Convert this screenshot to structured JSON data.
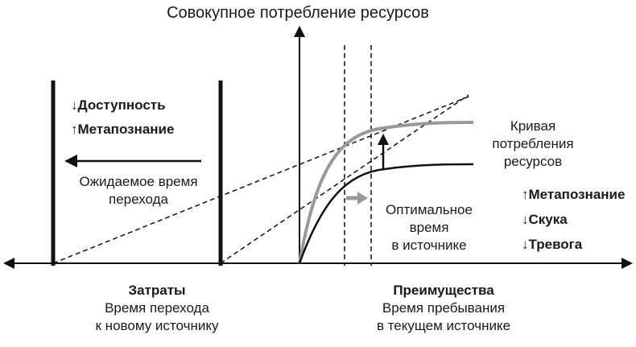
{
  "title": "Совокупное потребление ресурсов",
  "left_box": {
    "item1_arrow": "↓",
    "item1_label": "Доступность",
    "item2_arrow": "↑",
    "item2_label": "Метапознание",
    "caption_line1": "Ожидаемое время",
    "caption_line2": "перехода"
  },
  "curve_label": {
    "line1": "Кривая",
    "line2": "потребления",
    "line3": "ресурсов"
  },
  "optimal_label": {
    "line1": "Оптимальное",
    "line2": "время",
    "line3": "в источнике"
  },
  "right_list": {
    "item1_arrow": "↑",
    "item1_label": "Метапознание",
    "item2_arrow": "↓",
    "item2_label": "Скука",
    "item3_arrow": "↓",
    "item3_label": "Тревога"
  },
  "bottom_left": {
    "heading": "Затраты",
    "line1": "Время перехода",
    "line2": "к новому источнику"
  },
  "bottom_right": {
    "heading": "Преимущества",
    "line1": "Время пребывания",
    "line2": "в текущем источнике"
  },
  "colors": {
    "ink": "#111111",
    "grey_curve": "#999999"
  }
}
